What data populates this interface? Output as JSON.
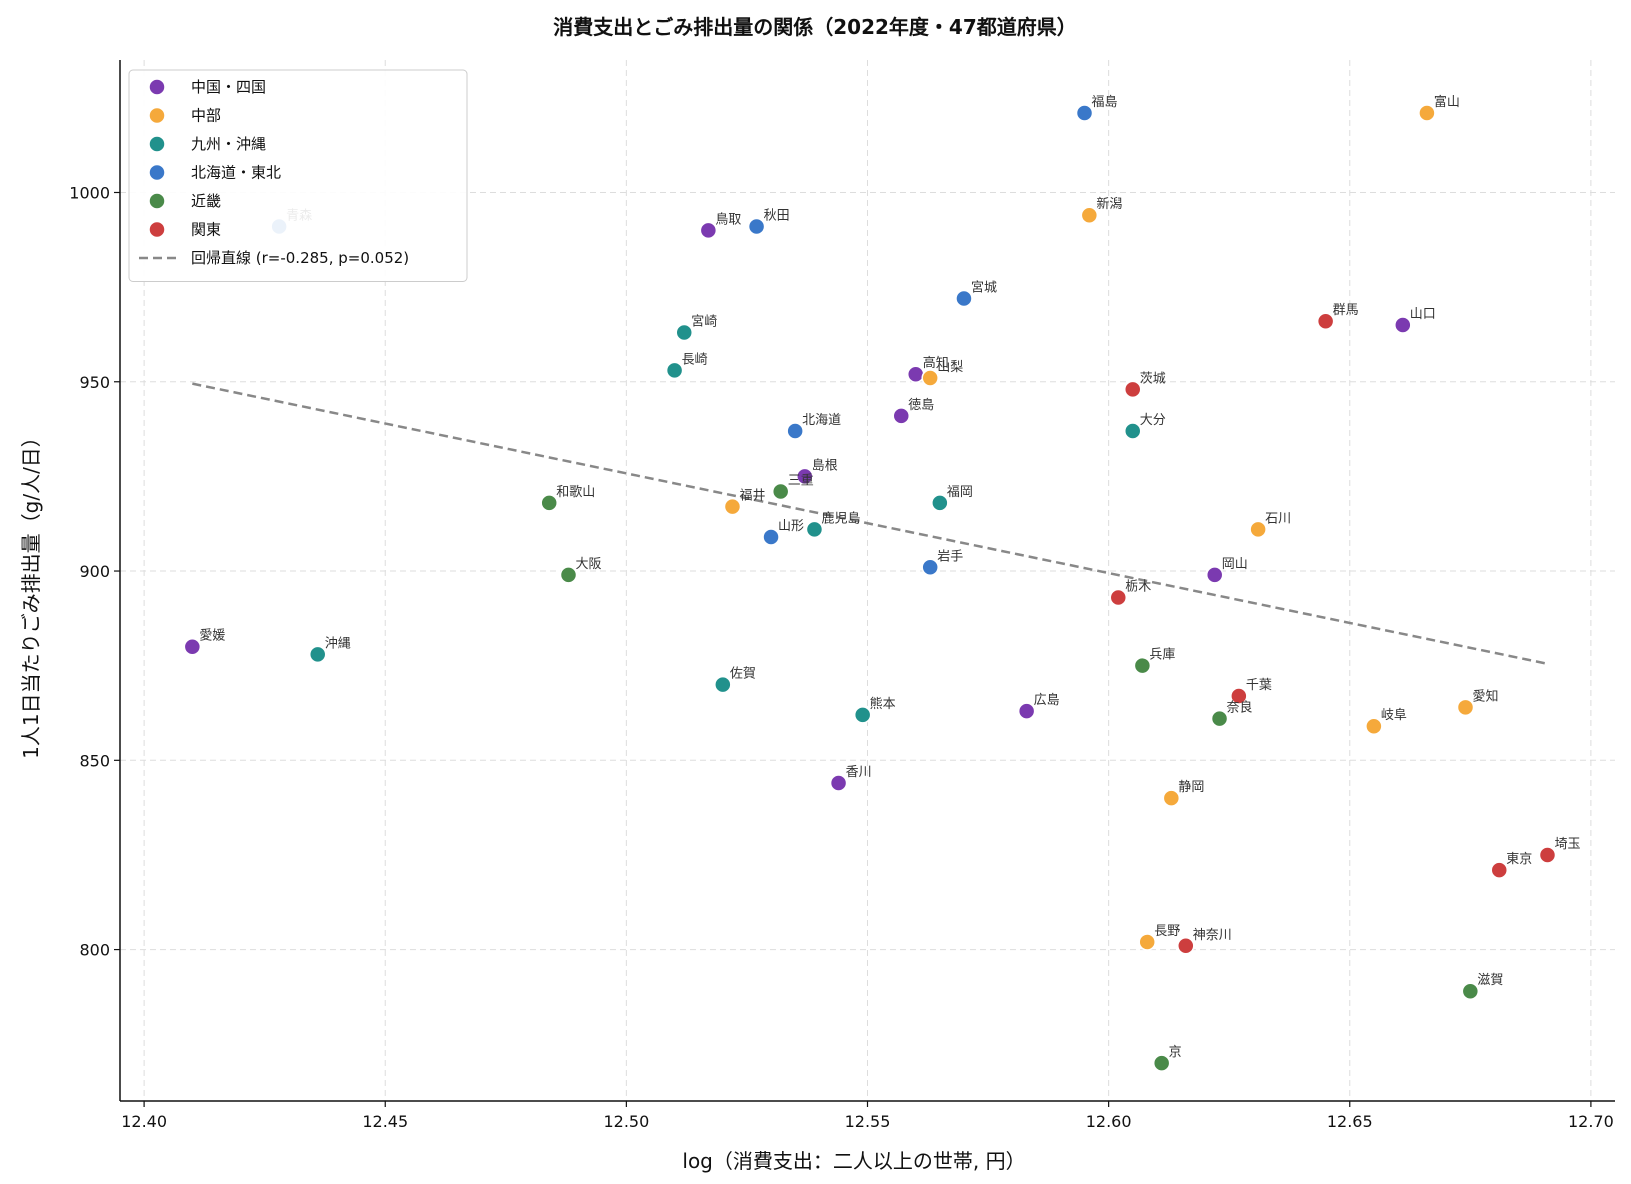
{
  "chart_data": {
    "type": "scatter",
    "title": "消費支出とごみ排出量の関係（2022年度・47都道府県）",
    "xlabel": "log（消費支出：二人以上の世帯, 円）",
    "ylabel": "1人1日当たりごみ排出量（g/人/日）",
    "xlim": [
      12.395,
      12.705
    ],
    "ylim": [
      760,
      1035
    ],
    "xticks": [
      12.4,
      12.45,
      12.5,
      12.55,
      12.6,
      12.65,
      12.7
    ],
    "xtick_labels": [
      "12.40",
      "12.45",
      "12.50",
      "12.55",
      "12.60",
      "12.65",
      "12.70"
    ],
    "yticks": [
      800,
      850,
      900,
      950,
      1000
    ],
    "ytick_labels": [
      "800",
      "850",
      "900",
      "950",
      "1000"
    ],
    "grid": true,
    "legend_position": "top-left",
    "series": [
      {
        "name": "中国・四国",
        "color": "#7b3ab0",
        "points": [
          {
            "label": "鳥取",
            "x": 12.517,
            "y": 990
          },
          {
            "label": "高知",
            "x": 12.56,
            "y": 952
          },
          {
            "label": "徳島",
            "x": 12.557,
            "y": 941
          },
          {
            "label": "島根",
            "x": 12.537,
            "y": 925
          },
          {
            "label": "岡山",
            "x": 12.622,
            "y": 899
          },
          {
            "label": "山口",
            "x": 12.661,
            "y": 965
          },
          {
            "label": "愛媛",
            "x": 12.41,
            "y": 880
          },
          {
            "label": "広島",
            "x": 12.583,
            "y": 863
          },
          {
            "label": "香川",
            "x": 12.544,
            "y": 844
          }
        ]
      },
      {
        "name": "中部",
        "color": "#f5a93b",
        "points": [
          {
            "label": "富山",
            "x": 12.666,
            "y": 1021
          },
          {
            "label": "新潟",
            "x": 12.596,
            "y": 994
          },
          {
            "label": "山梨",
            "x": 12.563,
            "y": 951
          },
          {
            "label": "福井",
            "x": 12.522,
            "y": 917
          },
          {
            "label": "石川",
            "x": 12.631,
            "y": 911
          },
          {
            "label": "愛知",
            "x": 12.674,
            "y": 864
          },
          {
            "label": "岐阜",
            "x": 12.655,
            "y": 859
          },
          {
            "label": "静岡",
            "x": 12.613,
            "y": 840
          },
          {
            "label": "長野",
            "x": 12.608,
            "y": 802
          }
        ]
      },
      {
        "name": "九州・沖縄",
        "color": "#21918c",
        "points": [
          {
            "label": "宮崎",
            "x": 12.512,
            "y": 963
          },
          {
            "label": "長崎",
            "x": 12.51,
            "y": 953
          },
          {
            "label": "大分",
            "x": 12.605,
            "y": 937
          },
          {
            "label": "福岡",
            "x": 12.565,
            "y": 918
          },
          {
            "label": "鹿児島",
            "x": 12.539,
            "y": 911
          },
          {
            "label": "沖縄",
            "x": 12.436,
            "y": 878
          },
          {
            "label": "佐賀",
            "x": 12.52,
            "y": 870
          },
          {
            "label": "熊本",
            "x": 12.549,
            "y": 862
          }
        ]
      },
      {
        "name": "北海道・東北",
        "color": "#3a78c9",
        "points": [
          {
            "label": "福島",
            "x": 12.595,
            "y": 1021
          },
          {
            "label": "青森",
            "x": 12.428,
            "y": 991
          },
          {
            "label": "秋田",
            "x": 12.527,
            "y": 991
          },
          {
            "label": "宮城",
            "x": 12.57,
            "y": 972
          },
          {
            "label": "北海道",
            "x": 12.535,
            "y": 937
          },
          {
            "label": "山形",
            "x": 12.53,
            "y": 909
          },
          {
            "label": "岩手",
            "x": 12.563,
            "y": 901
          }
        ]
      },
      {
        "name": "近畿",
        "color": "#4a8a49",
        "points": [
          {
            "label": "和歌山",
            "x": 12.484,
            "y": 918
          },
          {
            "label": "三重",
            "x": 12.532,
            "y": 921
          },
          {
            "label": "大阪",
            "x": 12.488,
            "y": 899
          },
          {
            "label": "兵庫",
            "x": 12.607,
            "y": 875
          },
          {
            "label": "奈良",
            "x": 12.623,
            "y": 861
          },
          {
            "label": "滋賀",
            "x": 12.675,
            "y": 789
          },
          {
            "label": "京",
            "x": 12.611,
            "y": 770
          }
        ]
      },
      {
        "name": "関東",
        "color": "#cd3e3e",
        "points": [
          {
            "label": "群馬",
            "x": 12.645,
            "y": 966
          },
          {
            "label": "茨城",
            "x": 12.605,
            "y": 948
          },
          {
            "label": "栃木",
            "x": 12.602,
            "y": 893
          },
          {
            "label": "千葉",
            "x": 12.627,
            "y": 867
          },
          {
            "label": "埼玉",
            "x": 12.691,
            "y": 825
          },
          {
            "label": "東京",
            "x": 12.681,
            "y": 821
          },
          {
            "label": "神奈川",
            "x": 12.616,
            "y": 801
          }
        ]
      }
    ],
    "regression": {
      "name": "回帰直線 (r=-0.285, p=0.052)",
      "color": "#888888",
      "x": [
        12.41,
        12.691
      ],
      "y": [
        949.5,
        875.5
      ]
    }
  }
}
